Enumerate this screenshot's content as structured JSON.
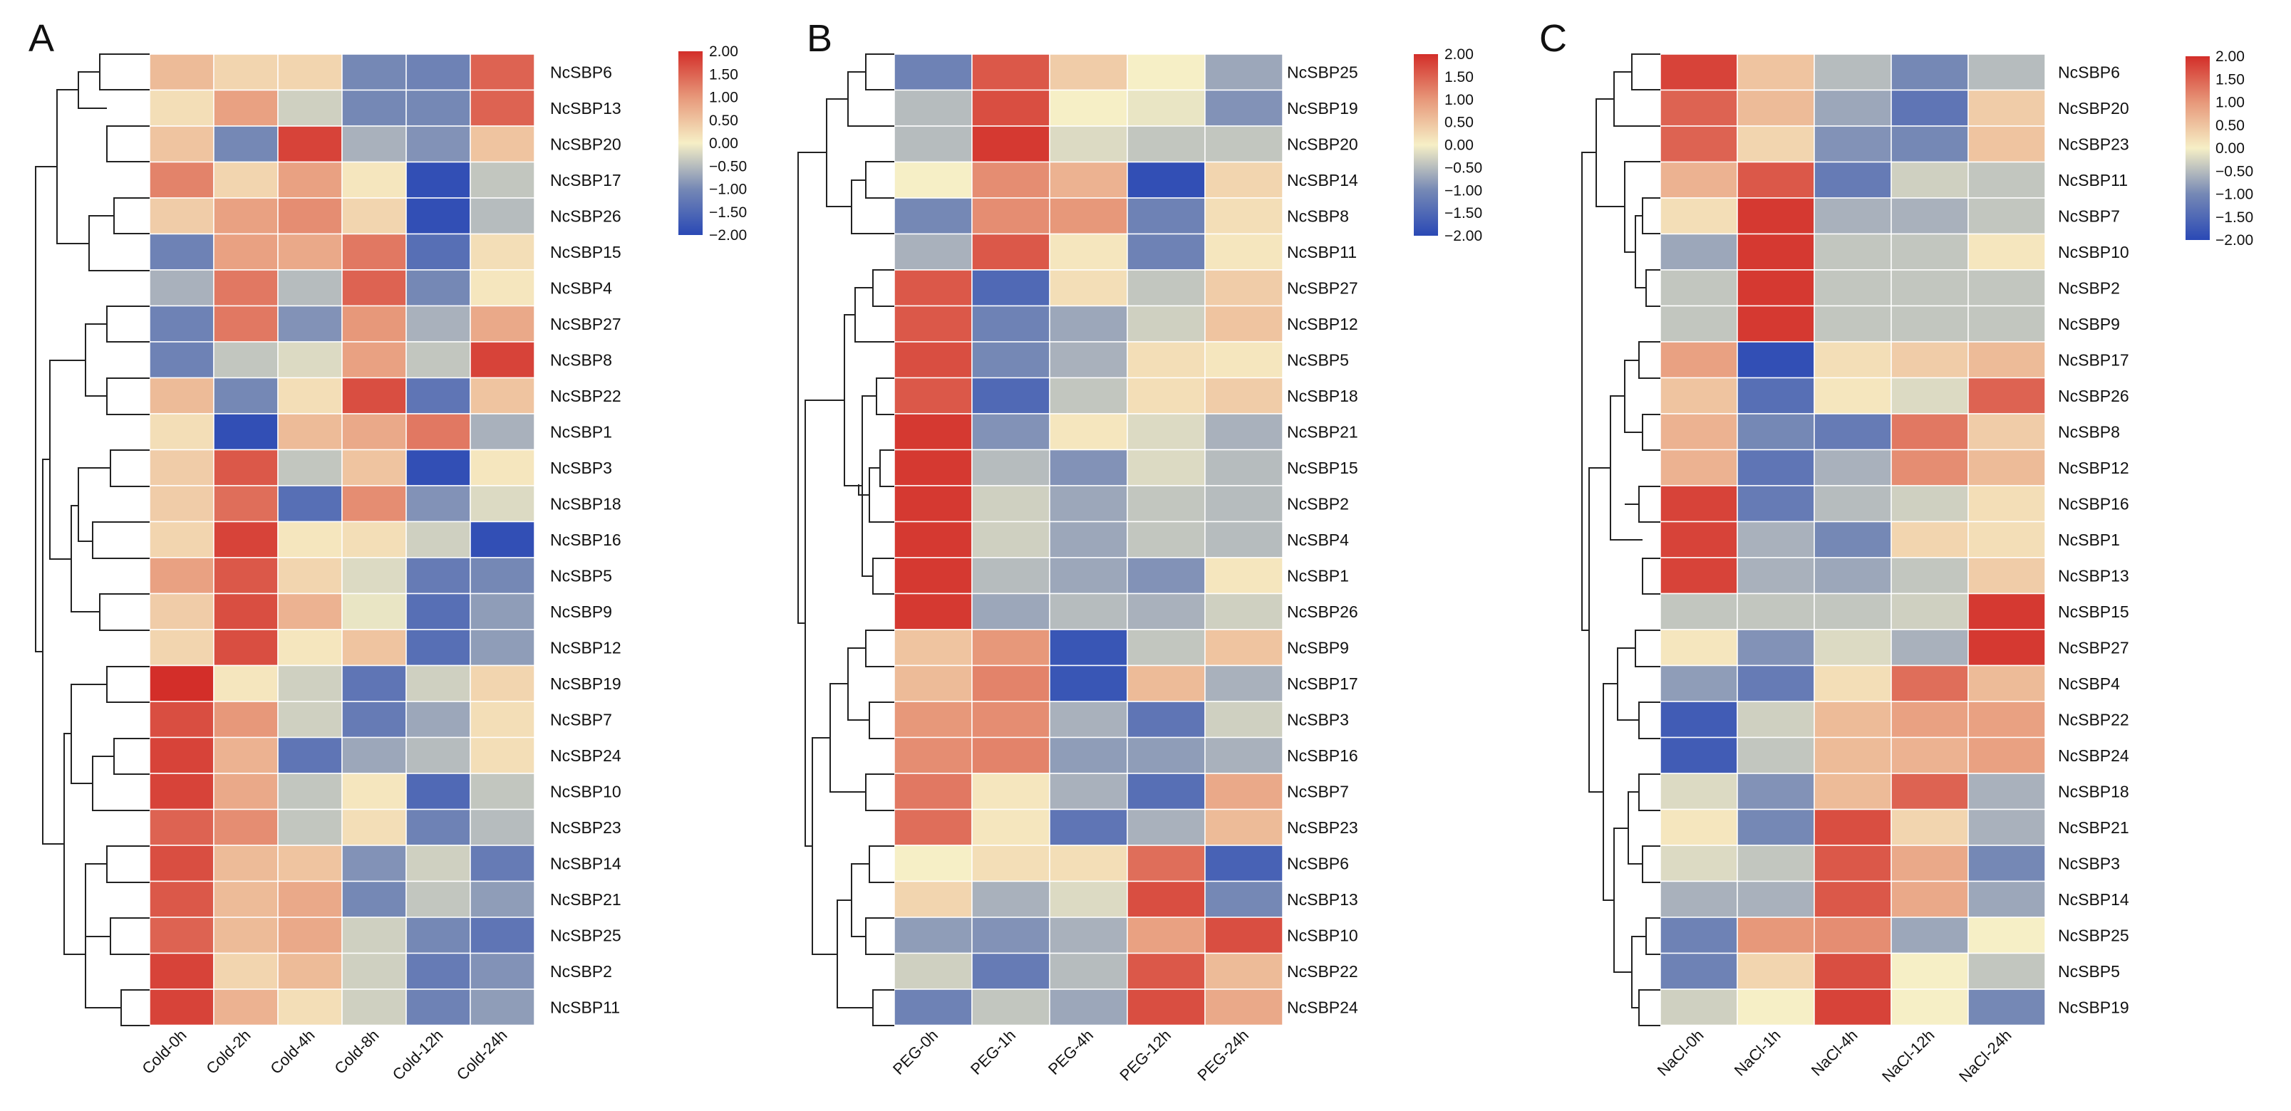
{
  "chart_data": [
    {
      "type": "heatmap",
      "panel": "A",
      "columns": [
        "Cold-0h",
        "Cold-2h",
        "Cold-4h",
        "Cold-8h",
        "Cold-12h",
        "Cold-24h"
      ],
      "rows": [
        "NcSBP6",
        "NcSBP13",
        "NcSBP20",
        "NcSBP17",
        "NcSBP26",
        "NcSBP15",
        "NcSBP4",
        "NcSBP27",
        "NcSBP8",
        "NcSBP22",
        "NcSBP1",
        "NcSBP3",
        "NcSBP18",
        "NcSBP16",
        "NcSBP5",
        "NcSBP9",
        "NcSBP12",
        "NcSBP19",
        "NcSBP7",
        "NcSBP24",
        "NcSBP10",
        "NcSBP23",
        "NcSBP14",
        "NcSBP21",
        "NcSBP25",
        "NcSBP2",
        "NcSBP11"
      ],
      "values": [
        [
          0.6,
          0.3,
          0.3,
          -1.0,
          -1.1,
          1.5
        ],
        [
          0.2,
          0.9,
          -0.3,
          -1.0,
          -1.0,
          1.5
        ],
        [
          0.5,
          -1.0,
          1.8,
          -0.6,
          -0.9,
          0.5
        ],
        [
          1.2,
          0.3,
          0.9,
          0.1,
          -1.9,
          -0.4
        ],
        [
          0.4,
          0.9,
          1.1,
          0.3,
          -1.9,
          -0.5
        ],
        [
          -1.1,
          0.9,
          0.8,
          1.3,
          -1.4,
          0.2
        ],
        [
          -0.6,
          1.3,
          -0.5,
          1.5,
          -1.0,
          0.1
        ],
        [
          -1.1,
          1.3,
          -0.9,
          1.0,
          -0.6,
          0.8
        ],
        [
          -1.1,
          -0.4,
          -0.2,
          0.9,
          -0.4,
          1.8
        ],
        [
          0.6,
          -1.0,
          0.2,
          1.7,
          -1.3,
          0.5
        ],
        [
          0.2,
          -1.9,
          0.6,
          0.8,
          1.3,
          -0.6
        ],
        [
          0.4,
          1.6,
          -0.4,
          0.5,
          -1.9,
          0.1
        ],
        [
          0.4,
          1.4,
          -1.4,
          1.1,
          -0.9,
          -0.2
        ],
        [
          0.3,
          1.8,
          0.1,
          0.2,
          -0.3,
          -1.9
        ],
        [
          0.9,
          1.6,
          0.3,
          -0.2,
          -1.2,
          -1.0
        ],
        [
          0.4,
          1.7,
          0.7,
          -0.1,
          -1.4,
          -0.8
        ],
        [
          0.3,
          1.7,
          0.1,
          0.5,
          -1.4,
          -0.8
        ],
        [
          2.0,
          0.1,
          -0.3,
          -1.3,
          -0.3,
          0.3
        ],
        [
          1.7,
          1.0,
          -0.3,
          -1.2,
          -0.7,
          0.2
        ],
        [
          1.8,
          0.7,
          -1.3,
          -0.7,
          -0.5,
          0.2
        ],
        [
          1.8,
          0.8,
          -0.4,
          0.1,
          -1.5,
          -0.4
        ],
        [
          1.5,
          1.1,
          -0.4,
          0.2,
          -1.1,
          -0.5
        ],
        [
          1.7,
          0.6,
          0.5,
          -0.9,
          -0.3,
          -1.2
        ],
        [
          1.6,
          0.6,
          0.8,
          -1.0,
          -0.4,
          -0.8
        ],
        [
          1.5,
          0.6,
          0.8,
          -0.3,
          -1.0,
          -1.3
        ],
        [
          1.8,
          0.3,
          0.6,
          -0.3,
          -1.2,
          -0.9
        ],
        [
          1.8,
          0.7,
          0.2,
          -0.3,
          -1.1,
          -0.8
        ]
      ],
      "colorbar": {
        "min": -2.0,
        "max": 2.0,
        "ticks": [
          "2.00",
          "1.50",
          "1.00",
          "0.50",
          "0.00",
          "−0.50",
          "−1.00",
          "−1.50",
          "−2.00"
        ]
      }
    },
    {
      "type": "heatmap",
      "panel": "B",
      "columns": [
        "PEG-0h",
        "PEG-1h",
        "PEG-4h",
        "PEG-12h",
        "PEG-24h"
      ],
      "rows": [
        "NcSBP25",
        "NcSBP19",
        "NcSBP20",
        "NcSBP14",
        "NcSBP8",
        "NcSBP11",
        "NcSBP27",
        "NcSBP12",
        "NcSBP5",
        "NcSBP18",
        "NcSBP21",
        "NcSBP15",
        "NcSBP2",
        "NcSBP4",
        "NcSBP1",
        "NcSBP26",
        "NcSBP9",
        "NcSBP17",
        "NcSBP3",
        "NcSBP16",
        "NcSBP7",
        "NcSBP23",
        "NcSBP6",
        "NcSBP13",
        "NcSBP10",
        "NcSBP22",
        "NcSBP24"
      ],
      "values": [
        [
          -1.1,
          1.6,
          0.4,
          0.0,
          -0.7
        ],
        [
          -0.5,
          1.7,
          0.0,
          -0.1,
          -0.9
        ],
        [
          -0.5,
          1.9,
          -0.2,
          -0.4,
          -0.4
        ],
        [
          0.0,
          1.1,
          0.7,
          -1.9,
          0.3
        ],
        [
          -1.0,
          1.1,
          1.0,
          -1.1,
          0.2
        ],
        [
          -0.6,
          1.6,
          0.1,
          -1.1,
          0.1
        ],
        [
          1.6,
          -1.5,
          0.2,
          -0.4,
          0.4
        ],
        [
          1.6,
          -1.1,
          -0.7,
          -0.3,
          0.5
        ],
        [
          1.7,
          -1.0,
          -0.6,
          0.2,
          0.1
        ],
        [
          1.6,
          -1.5,
          -0.4,
          0.2,
          0.4
        ],
        [
          1.9,
          -0.9,
          0.1,
          -0.2,
          -0.6
        ],
        [
          1.9,
          -0.5,
          -0.9,
          -0.2,
          -0.5
        ],
        [
          1.9,
          -0.3,
          -0.7,
          -0.4,
          -0.5
        ],
        [
          1.9,
          -0.3,
          -0.7,
          -0.4,
          -0.5
        ],
        [
          1.9,
          -0.5,
          -0.7,
          -0.9,
          0.1
        ],
        [
          1.9,
          -0.7,
          -0.5,
          -0.6,
          -0.3
        ],
        [
          0.5,
          1.0,
          -1.8,
          -0.4,
          0.5
        ],
        [
          0.6,
          1.2,
          -1.8,
          0.6,
          -0.6
        ],
        [
          1.0,
          1.1,
          -0.6,
          -1.3,
          -0.3
        ],
        [
          1.1,
          1.2,
          -0.8,
          -0.8,
          -0.6
        ],
        [
          1.3,
          0.1,
          -0.6,
          -1.4,
          0.8
        ],
        [
          1.4,
          0.1,
          -1.3,
          -0.6,
          0.6
        ],
        [
          0.0,
          0.2,
          0.2,
          1.4,
          -1.6
        ],
        [
          0.3,
          -0.6,
          -0.2,
          1.7,
          -1.0
        ],
        [
          -0.8,
          -0.9,
          -0.6,
          0.9,
          1.7
        ],
        [
          -0.3,
          -1.2,
          -0.5,
          1.6,
          0.6
        ],
        [
          -1.1,
          -0.4,
          -0.7,
          1.7,
          0.8
        ]
      ],
      "colorbar": {
        "min": -2.0,
        "max": 2.0,
        "ticks": [
          "2.00",
          "1.50",
          "1.00",
          "0.50",
          "0.00",
          "−0.50",
          "−1.00",
          "−1.50",
          "−2.00"
        ]
      }
    },
    {
      "type": "heatmap",
      "panel": "C",
      "columns": [
        "NaCl-0h",
        "NaCl-1h",
        "NaCl-4h",
        "NaCl-12h",
        "NaCl-24h"
      ],
      "rows": [
        "NcSBP6",
        "NcSBP20",
        "NcSBP23",
        "NcSBP11",
        "NcSBP7",
        "NcSBP10",
        "NcSBP2",
        "NcSBP9",
        "NcSBP17",
        "NcSBP26",
        "NcSBP8",
        "NcSBP12",
        "NcSBP16",
        "NcSBP1",
        "NcSBP13",
        "NcSBP15",
        "NcSBP27",
        "NcSBP4",
        "NcSBP22",
        "NcSBP24",
        "NcSBP18",
        "NcSBP21",
        "NcSBP3",
        "NcSBP14",
        "NcSBP25",
        "NcSBP5",
        "NcSBP19"
      ],
      "values": [
        [
          1.8,
          0.5,
          -0.5,
          -1.0,
          -0.5
        ],
        [
          1.5,
          0.6,
          -0.7,
          -1.3,
          0.4
        ],
        [
          1.5,
          0.3,
          -0.9,
          -1.0,
          0.5
        ],
        [
          0.7,
          1.6,
          -1.2,
          -0.3,
          -0.4
        ],
        [
          0.2,
          1.9,
          -0.6,
          -0.6,
          -0.4
        ],
        [
          -0.7,
          1.9,
          -0.4,
          -0.4,
          0.1
        ],
        [
          -0.4,
          1.9,
          -0.4,
          -0.4,
          -0.4
        ],
        [
          -0.4,
          1.9,
          -0.4,
          -0.4,
          -0.4
        ],
        [
          0.9,
          -1.9,
          0.2,
          0.4,
          0.6
        ],
        [
          0.5,
          -1.4,
          0.1,
          -0.2,
          1.5
        ],
        [
          0.7,
          -1.0,
          -1.2,
          1.3,
          0.4
        ],
        [
          0.7,
          -1.3,
          -0.6,
          1.1,
          0.6
        ],
        [
          1.8,
          -1.2,
          -0.5,
          -0.3,
          0.2
        ],
        [
          1.8,
          -0.6,
          -1.0,
          0.3,
          0.2
        ],
        [
          1.8,
          -0.6,
          -0.7,
          -0.4,
          0.4
        ],
        [
          -0.4,
          -0.4,
          -0.4,
          -0.3,
          1.9
        ],
        [
          0.1,
          -0.9,
          -0.2,
          -0.6,
          1.9
        ],
        [
          -0.8,
          -1.2,
          0.2,
          1.4,
          0.6
        ],
        [
          -1.7,
          -0.3,
          0.6,
          0.9,
          0.9
        ],
        [
          -1.7,
          -0.4,
          0.6,
          0.7,
          0.9
        ],
        [
          -0.2,
          -0.9,
          0.6,
          1.5,
          -0.6
        ],
        [
          0.1,
          -1.0,
          1.7,
          0.3,
          -0.6
        ],
        [
          -0.2,
          -0.4,
          1.6,
          0.8,
          -1.0
        ],
        [
          -0.6,
          -0.6,
          1.6,
          0.8,
          -0.7
        ],
        [
          -1.1,
          1.0,
          1.1,
          -0.7,
          0.0
        ],
        [
          -1.1,
          0.3,
          1.7,
          0.0,
          -0.4
        ],
        [
          -0.3,
          0.0,
          1.8,
          0.0,
          -1.0
        ]
      ],
      "colorbar": {
        "min": -2.0,
        "max": 2.0,
        "ticks": [
          "2.00",
          "1.50",
          "1.00",
          "0.50",
          "0.00",
          "−0.50",
          "−1.00",
          "−1.50",
          "−2.00"
        ]
      }
    }
  ]
}
